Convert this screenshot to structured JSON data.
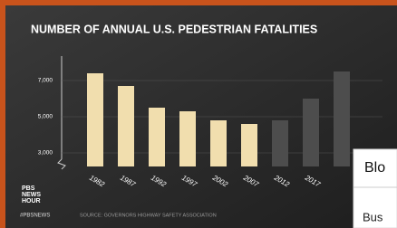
{
  "chart_data": {
    "type": "bar",
    "title": "NUMBER OF ANNUAL U.S. PEDESTRIAN FATALITIES",
    "categories": [
      "1982",
      "1987",
      "1992",
      "1997",
      "2002",
      "2007",
      "2012",
      "2017",
      null
    ],
    "values": [
      7400,
      6700,
      5500,
      5300,
      4800,
      4600,
      4800,
      6000,
      7500
    ],
    "colors": [
      "#f1deae",
      "#f1deae",
      "#f1deae",
      "#f1deae",
      "#f1deae",
      "#f1deae",
      "#4d4d4d",
      "#4d4d4d",
      "#4d4d4d"
    ],
    "ylim": [
      2250,
      8450
    ],
    "yticks": [
      {
        "value": 3000,
        "label": "3,000"
      },
      {
        "value": 5000,
        "label": "5,000"
      },
      {
        "value": 7000,
        "label": "7,000"
      }
    ],
    "grid": true,
    "source": "SOURCE: GOVERNORS HIGHWAY SAFETY ASSOCIATION"
  },
  "branding": {
    "logo": [
      "PBS",
      "NEWS",
      "HOUR"
    ],
    "hashtag": "#PBSNEWS"
  },
  "overlay": {
    "title": "Blo",
    "text": "Bus"
  }
}
